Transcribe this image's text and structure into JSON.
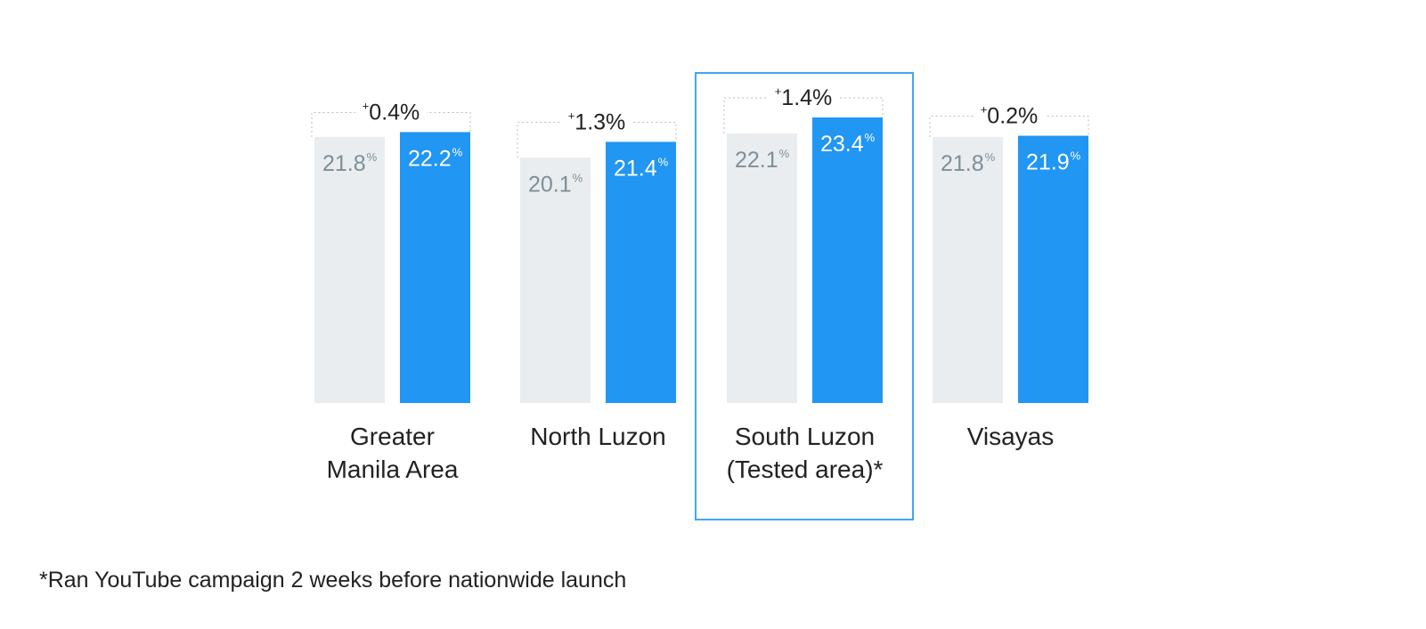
{
  "chart_data": {
    "type": "bar",
    "categories": [
      [
        "Greater",
        "Manila Area"
      ],
      [
        "North Luzon"
      ],
      [
        "South Luzon",
        "(Tested area)*"
      ],
      [
        "Visayas"
      ]
    ],
    "series": [
      {
        "values": [
          21.8,
          20.1,
          22.1,
          21.8
        ],
        "value_labels": [
          "21.8",
          "20.1",
          "22.1",
          "21.8"
        ],
        "unit": "%"
      },
      {
        "values": [
          22.2,
          21.4,
          23.4,
          21.9
        ],
        "value_labels": [
          "22.2",
          "21.4",
          "23.4",
          "21.9"
        ],
        "unit": "%"
      }
    ],
    "differences": [
      {
        "sign": "+",
        "text": "0.4%"
      },
      {
        "sign": "+",
        "text": "1.3%"
      },
      {
        "sign": "+",
        "text": "1.4%"
      },
      {
        "sign": "+",
        "text": "0.2%"
      }
    ],
    "highlighted_category": 2,
    "ylim": [
      0,
      23.4
    ],
    "grid": false,
    "colors": {
      "baseline": "#e9edf0",
      "comparison": "#2196f3",
      "baseline_label": "#7d8f99",
      "comparison_label": "#ffffff",
      "highlight_border": "#42a5f5",
      "text": "#222222",
      "bracket": "#bbbbbb"
    }
  },
  "footnote": "*Ran YouTube campaign 2 weeks before nationwide launch"
}
